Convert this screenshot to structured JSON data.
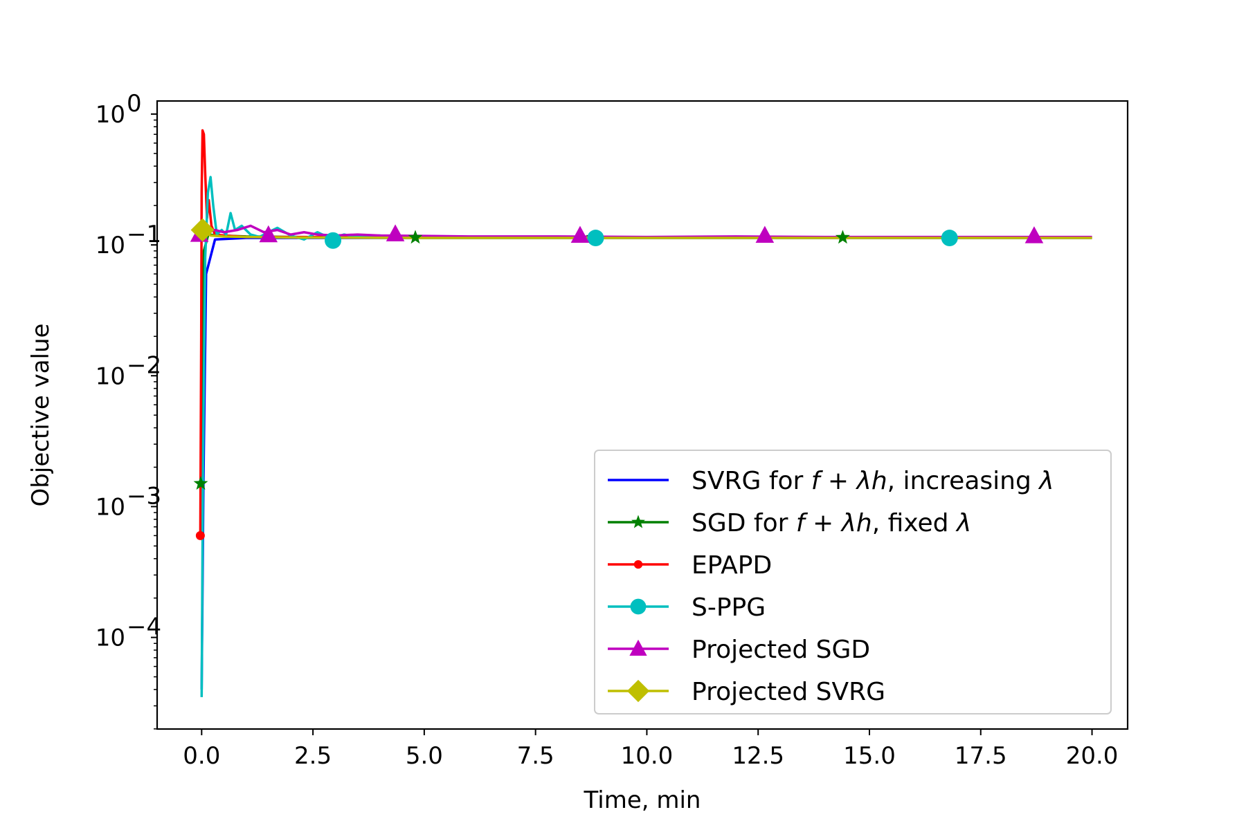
{
  "chart_data": {
    "type": "line",
    "xlabel": "Time, min",
    "ylabel": "Objective value",
    "yscale": "log",
    "xlim": [
      -1,
      20.8
    ],
    "ylim_log10": [
      -4.7,
      0.1
    ],
    "x_ticks": [
      0,
      2.5,
      5,
      7.5,
      10,
      12.5,
      15,
      17.5,
      20
    ],
    "x_tick_labels": [
      "0.0",
      "2.5",
      "5.0",
      "7.5",
      "10.0",
      "12.5",
      "15.0",
      "17.5",
      "20.0"
    ],
    "y_ticks_log10": [
      0,
      -1,
      -2,
      -3,
      -4
    ],
    "y_tick_labels": [
      {
        "base": "10",
        "exp": "0"
      },
      {
        "base": "10",
        "exp": "−1"
      },
      {
        "base": "10",
        "exp": "−2"
      },
      {
        "base": "10",
        "exp": "−3"
      },
      {
        "base": "10",
        "exp": "−4"
      }
    ],
    "legend_position": "lower-right",
    "series": [
      {
        "name": "SVRG for f + λh, increasing λ",
        "legend_parts": {
          "pre": "SVRG for ",
          "f": "f",
          "mid": " + ",
          "lam": "λ",
          "h": "h",
          "post": ", increasing ",
          "lam2": "λ"
        },
        "color": "#0000ff",
        "marker": "none",
        "x": [
          0.0,
          0.04,
          0.1,
          0.3,
          1,
          2,
          5,
          10,
          15,
          20
        ],
        "y": [
          4e-05,
          0.0015,
          0.06,
          0.11,
          0.113,
          0.113,
          0.113,
          0.113,
          0.113,
          0.113
        ],
        "markers_at": []
      },
      {
        "name": "SGD for f + λh, fixed λ",
        "legend_parts": {
          "pre": "SGD for ",
          "f": "f",
          "mid": " + ",
          "lam": "λ",
          "h": "h",
          "post": ", fixed ",
          "lam2": "λ"
        },
        "color": "#008000",
        "marker": "star",
        "x": [
          -0.02,
          0.01,
          0.05,
          0.15,
          0.4,
          1,
          2,
          4.8,
          8.8,
          14.4,
          20
        ],
        "y": [
          0.0015,
          0.01,
          0.09,
          0.12,
          0.118,
          0.116,
          0.115,
          0.114,
          0.114,
          0.114,
          0.114
        ],
        "markers_at": [
          [
            -0.02,
            0.0015
          ],
          [
            4.8,
            0.114
          ],
          [
            8.8,
            0.114
          ],
          [
            14.4,
            0.114
          ]
        ]
      },
      {
        "name": "EPAPD",
        "color": "#ff0000",
        "marker": "dot",
        "x": [
          -0.03,
          -0.01,
          0.0,
          0.02,
          0.05,
          0.08,
          0.12,
          0.16,
          0.22,
          0.3,
          0.5,
          1,
          2,
          5,
          10,
          20
        ],
        "y": [
          0.0006,
          0.02,
          0.25,
          0.75,
          0.7,
          0.35,
          0.16,
          0.22,
          0.14,
          0.12,
          0.118,
          0.115,
          0.115,
          0.114,
          0.114,
          0.114
        ],
        "markers_at": [
          [
            -0.03,
            0.0006
          ]
        ]
      },
      {
        "name": "S-PPG",
        "color": "#00bfbf",
        "marker": "circle",
        "x": [
          0.0,
          0.03,
          0.08,
          0.14,
          0.2,
          0.26,
          0.34,
          0.45,
          0.55,
          0.65,
          0.75,
          0.9,
          1.1,
          1.3,
          1.5,
          1.7,
          2.0,
          2.3,
          2.6,
          2.9,
          3.2,
          3.5,
          4.0,
          4.5,
          5.0,
          6,
          8,
          10,
          15,
          20
        ],
        "y": [
          3.5e-05,
          0.002,
          0.08,
          0.25,
          0.33,
          0.2,
          0.12,
          0.13,
          0.12,
          0.175,
          0.13,
          0.14,
          0.12,
          0.115,
          0.125,
          0.135,
          0.118,
          0.11,
          0.125,
          0.112,
          0.12,
          0.115,
          0.118,
          0.113,
          0.115,
          0.114,
          0.114,
          0.114,
          0.114,
          0.114
        ],
        "markers_at": [
          [
            2.95,
            0.108
          ],
          [
            8.85,
            0.113
          ],
          [
            16.8,
            0.113
          ]
        ]
      },
      {
        "name": "Projected SGD",
        "color": "#bf00bf",
        "marker": "triangle",
        "x": [
          -0.05,
          0.1,
          0.3,
          0.5,
          0.8,
          1.1,
          1.4,
          1.7,
          2.0,
          2.3,
          2.6,
          3.0,
          3.5,
          4.0,
          5,
          6,
          8,
          10,
          12,
          14,
          16,
          18,
          20
        ],
        "y": [
          0.12,
          0.125,
          0.13,
          0.125,
          0.13,
          0.14,
          0.125,
          0.13,
          0.12,
          0.125,
          0.12,
          0.118,
          0.12,
          0.118,
          0.117,
          0.116,
          0.116,
          0.115,
          0.116,
          0.115,
          0.115,
          0.115,
          0.115
        ],
        "markers_at": [
          [
            -0.05,
            0.12
          ],
          [
            1.5,
            0.119
          ],
          [
            4.35,
            0.121
          ],
          [
            8.5,
            0.118
          ],
          [
            12.65,
            0.118
          ],
          [
            18.7,
            0.117
          ]
        ]
      },
      {
        "name": "Projected SVRG",
        "color": "#bfbf00",
        "marker": "diamond",
        "x": [
          0.02,
          0.2,
          0.5,
          1,
          2,
          5,
          10,
          15,
          20
        ],
        "y": [
          0.13,
          0.118,
          0.116,
          0.115,
          0.114,
          0.113,
          0.113,
          0.113,
          0.113
        ],
        "markers_at": [
          [
            0.02,
            0.13
          ]
        ]
      }
    ]
  }
}
